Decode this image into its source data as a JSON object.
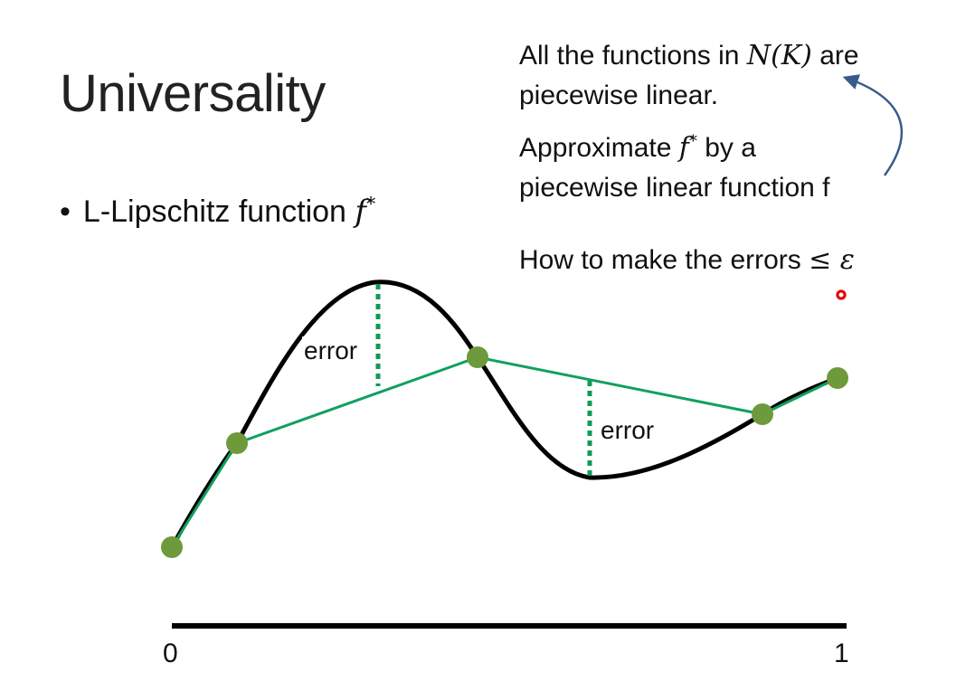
{
  "slide": {
    "title": "Universality",
    "bullet": {
      "marker": "•",
      "text": "L-Lipschitz function ",
      "math_symbol": "f",
      "math_sup": "*"
    }
  },
  "notes": {
    "note1": {
      "text_a": "All the functions in ",
      "math": "N(K)",
      "text_b": " are",
      "line2": "piecewise linear."
    },
    "note2": {
      "text_a": "Approximate ",
      "math_symbol": "f",
      "math_sup": "*",
      "text_b": " by a",
      "line2": "piecewise linear function f"
    },
    "note3": {
      "text": "How to make the errors ",
      "math": "≤ ε"
    }
  },
  "diagram": {
    "error_labels": [
      "error",
      "error"
    ],
    "axis": {
      "start_label": "0",
      "end_label": "1"
    },
    "colors": {
      "curve": "#000000",
      "piecewise_line": "#11a060",
      "error_dotted": "#119a55",
      "nodes": "#6e9a3c",
      "arrow": "#3a5a8c",
      "pointer": "#e00000"
    }
  }
}
